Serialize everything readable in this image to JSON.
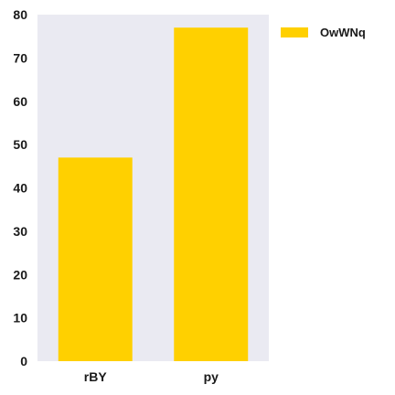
{
  "chart_data": {
    "type": "bar",
    "categories": [
      "rBY",
      "py"
    ],
    "series": [
      {
        "name": "OwWNq",
        "values": [
          47,
          77
        ],
        "color": "#FFD000"
      }
    ],
    "ylim": [
      0,
      80
    ],
    "yticks": [
      0,
      10,
      20,
      30,
      40,
      50,
      60,
      70,
      80
    ],
    "grid": false,
    "legend": "top-right",
    "plot_background": "#EAEAF2"
  }
}
